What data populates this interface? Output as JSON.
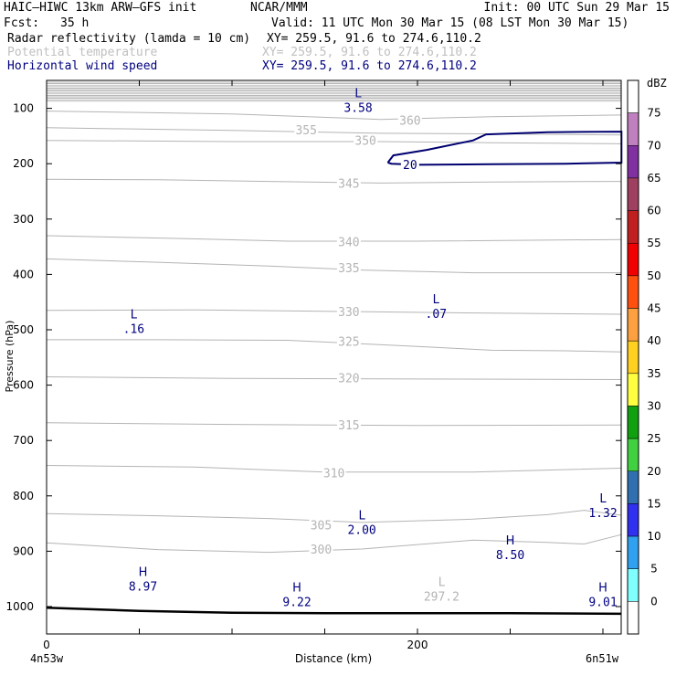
{
  "header": {
    "model": "HAIC–HIWC 13km ARW–GFS init",
    "org": "NCAR/MMM",
    "init": "Init: 00 UTC Sun 29 Mar 15",
    "fcst_label": "Fcst:",
    "fcst_value": "35 h",
    "valid": "Valid: 11 UTC Mon 30 Mar 15 (08 LST Mon 30 Mar 15)"
  },
  "fields": [
    {
      "name": "Radar reflectivity (lamda = 10 cm)",
      "xy": "XY= 259.5, 91.6 to 274.6,110.2",
      "color": "#000000"
    },
    {
      "name": "Potential temperature",
      "xy": "XY= 259.5, 91.6 to 274.6,110.2",
      "color": "#c0c0c0"
    },
    {
      "name": "Horizontal wind speed",
      "xy": "XY= 259.5, 91.6 to 274.6,110.2",
      "color": "#000080"
    }
  ],
  "colorbar": {
    "unit": "dBZ",
    "levels": [
      "75",
      "70",
      "65",
      "60",
      "55",
      "50",
      "45",
      "40",
      "35",
      "30",
      "25",
      "20",
      "15",
      "10",
      "5",
      "0"
    ],
    "colors": [
      "#ffffff",
      "#c080c0",
      "#8030a0",
      "#a04060",
      "#c02020",
      "#f00000",
      "#ff5010",
      "#ffa040",
      "#ffd020",
      "#ffff40",
      "#10a010",
      "#40d040",
      "#3070b0",
      "#3030f0",
      "#30a0f0",
      "#80ffff",
      "#ffffff"
    ]
  },
  "chart_data": {
    "type": "contour cross-section",
    "xlabel": "Distance (km)",
    "ylabel": "Pressure (hPa)",
    "xlim": [
      0,
      310
    ],
    "ylim": [
      1050,
      55
    ],
    "x_ticks": [
      {
        "value": 0,
        "label": "0"
      },
      {
        "value": 200,
        "label": "200"
      }
    ],
    "x_end_labels": {
      "left": "4n53w",
      "right": "6n51w"
    },
    "y_ticks": [
      100,
      200,
      300,
      400,
      500,
      600,
      700,
      800,
      900,
      1000
    ],
    "surface_pressure": [
      [
        0,
        1002
      ],
      [
        50,
        1008
      ],
      [
        100,
        1011
      ],
      [
        150,
        1012
      ],
      [
        200,
        1012
      ],
      [
        250,
        1012
      ],
      [
        310,
        1013
      ]
    ],
    "theta_contours": [
      {
        "label": "300",
        "label_pos": [
          148,
          896
        ],
        "points": [
          [
            0,
            885
          ],
          [
            60,
            897
          ],
          [
            120,
            902
          ],
          [
            170,
            896
          ],
          [
            230,
            880
          ],
          [
            270,
            884
          ],
          [
            290,
            887
          ],
          [
            310,
            870
          ]
        ]
      },
      {
        "label": "305",
        "label_pos": [
          148,
          852
        ],
        "points": [
          [
            0,
            832
          ],
          [
            60,
            836
          ],
          [
            120,
            841
          ],
          [
            170,
            848
          ],
          [
            230,
            842
          ],
          [
            270,
            834
          ],
          [
            290,
            826
          ],
          [
            310,
            835
          ]
        ]
      },
      {
        "label": "310",
        "label_pos": [
          155,
          758
        ],
        "points": [
          [
            0,
            745
          ],
          [
            80,
            748
          ],
          [
            150,
            757
          ],
          [
            230,
            757
          ],
          [
            310,
            750
          ]
        ]
      },
      {
        "label": "315",
        "label_pos": [
          163,
          672
        ],
        "points": [
          [
            0,
            668
          ],
          [
            100,
            671
          ],
          [
            200,
            673
          ],
          [
            310,
            672
          ]
        ]
      },
      {
        "label": "320",
        "label_pos": [
          163,
          587
        ],
        "points": [
          [
            0,
            585
          ],
          [
            100,
            588
          ],
          [
            200,
            589
          ],
          [
            310,
            590
          ]
        ]
      },
      {
        "label": "325",
        "label_pos": [
          163,
          521
        ],
        "points": [
          [
            0,
            518
          ],
          [
            60,
            518
          ],
          [
            130,
            519
          ],
          [
            200,
            530
          ],
          [
            240,
            537
          ],
          [
            280,
            538
          ],
          [
            310,
            540
          ]
        ]
      },
      {
        "label": "330",
        "label_pos": [
          163,
          467
        ],
        "points": [
          [
            0,
            465
          ],
          [
            80,
            464
          ],
          [
            160,
            467
          ],
          [
            240,
            470
          ],
          [
            310,
            472
          ]
        ]
      },
      {
        "label": "335",
        "label_pos": [
          163,
          388
        ],
        "points": [
          [
            0,
            372
          ],
          [
            60,
            378
          ],
          [
            120,
            385
          ],
          [
            170,
            392
          ],
          [
            230,
            397
          ],
          [
            310,
            397
          ]
        ]
      },
      {
        "label": "340",
        "label_pos": [
          163,
          341
        ],
        "points": [
          [
            0,
            330
          ],
          [
            70,
            335
          ],
          [
            130,
            340
          ],
          [
            200,
            340
          ],
          [
            310,
            337
          ]
        ]
      },
      {
        "label": "345",
        "label_pos": [
          163,
          235
        ],
        "points": [
          [
            0,
            228
          ],
          [
            60,
            229
          ],
          [
            120,
            232
          ],
          [
            180,
            235
          ],
          [
            240,
            233
          ],
          [
            310,
            232
          ]
        ]
      },
      {
        "label": "350",
        "label_pos": [
          172,
          158
        ],
        "points": [
          [
            0,
            158
          ],
          [
            100,
            160
          ],
          [
            180,
            160
          ],
          [
            240,
            162
          ],
          [
            310,
            164
          ]
        ]
      },
      {
        "label": "355",
        "label_pos": [
          140,
          139
        ],
        "points": [
          [
            0,
            135
          ],
          [
            100,
            140
          ],
          [
            180,
            145
          ],
          [
            240,
            146
          ],
          [
            310,
            148
          ]
        ]
      },
      {
        "label": "360",
        "label_pos": [
          196,
          121
        ],
        "points": [
          [
            0,
            105
          ],
          [
            100,
            110
          ],
          [
            180,
            120
          ],
          [
            240,
            115
          ],
          [
            310,
            112
          ]
        ]
      }
    ],
    "wind_contours": [
      {
        "label": "20",
        "label_pos": [
          196,
          201
        ],
        "points": [
          [
            184,
            198
          ],
          [
            187,
            185
          ],
          [
            205,
            175
          ],
          [
            230,
            158
          ],
          [
            237,
            147
          ],
          [
            270,
            143
          ],
          [
            310,
            142
          ],
          [
            310,
            198
          ],
          [
            280,
            200
          ],
          [
            240,
            201
          ],
          [
            200,
            202
          ],
          [
            186,
            200
          ],
          [
            184,
            198
          ]
        ]
      }
    ],
    "extrema": [
      {
        "type": "L",
        "value": "3.58",
        "x": 168,
        "p": 85,
        "series": "wind"
      },
      {
        "type": "L",
        "value": ".16",
        "x": 47,
        "p": 484,
        "series": "wind"
      },
      {
        "type": "L",
        "value": ".07",
        "x": 210,
        "p": 457,
        "series": "wind"
      },
      {
        "type": "L",
        "value": "2.00",
        "x": 170,
        "p": 847,
        "series": "wind"
      },
      {
        "type": "L",
        "value": "1.32",
        "x": 300,
        "p": 817,
        "series": "wind"
      },
      {
        "type": "H",
        "value": "8.50",
        "x": 250,
        "p": 893,
        "series": "wind"
      },
      {
        "type": "H",
        "value": "8.97",
        "x": 52,
        "p": 950,
        "series": "wind"
      },
      {
        "type": "H",
        "value": "9.22",
        "x": 135,
        "p": 978,
        "series": "wind"
      },
      {
        "type": "H",
        "value": "9.01",
        "x": 300,
        "p": 978,
        "series": "wind"
      },
      {
        "type": "L",
        "value": "297.2",
        "x": 213,
        "p": 968,
        "series": "theta"
      }
    ]
  }
}
